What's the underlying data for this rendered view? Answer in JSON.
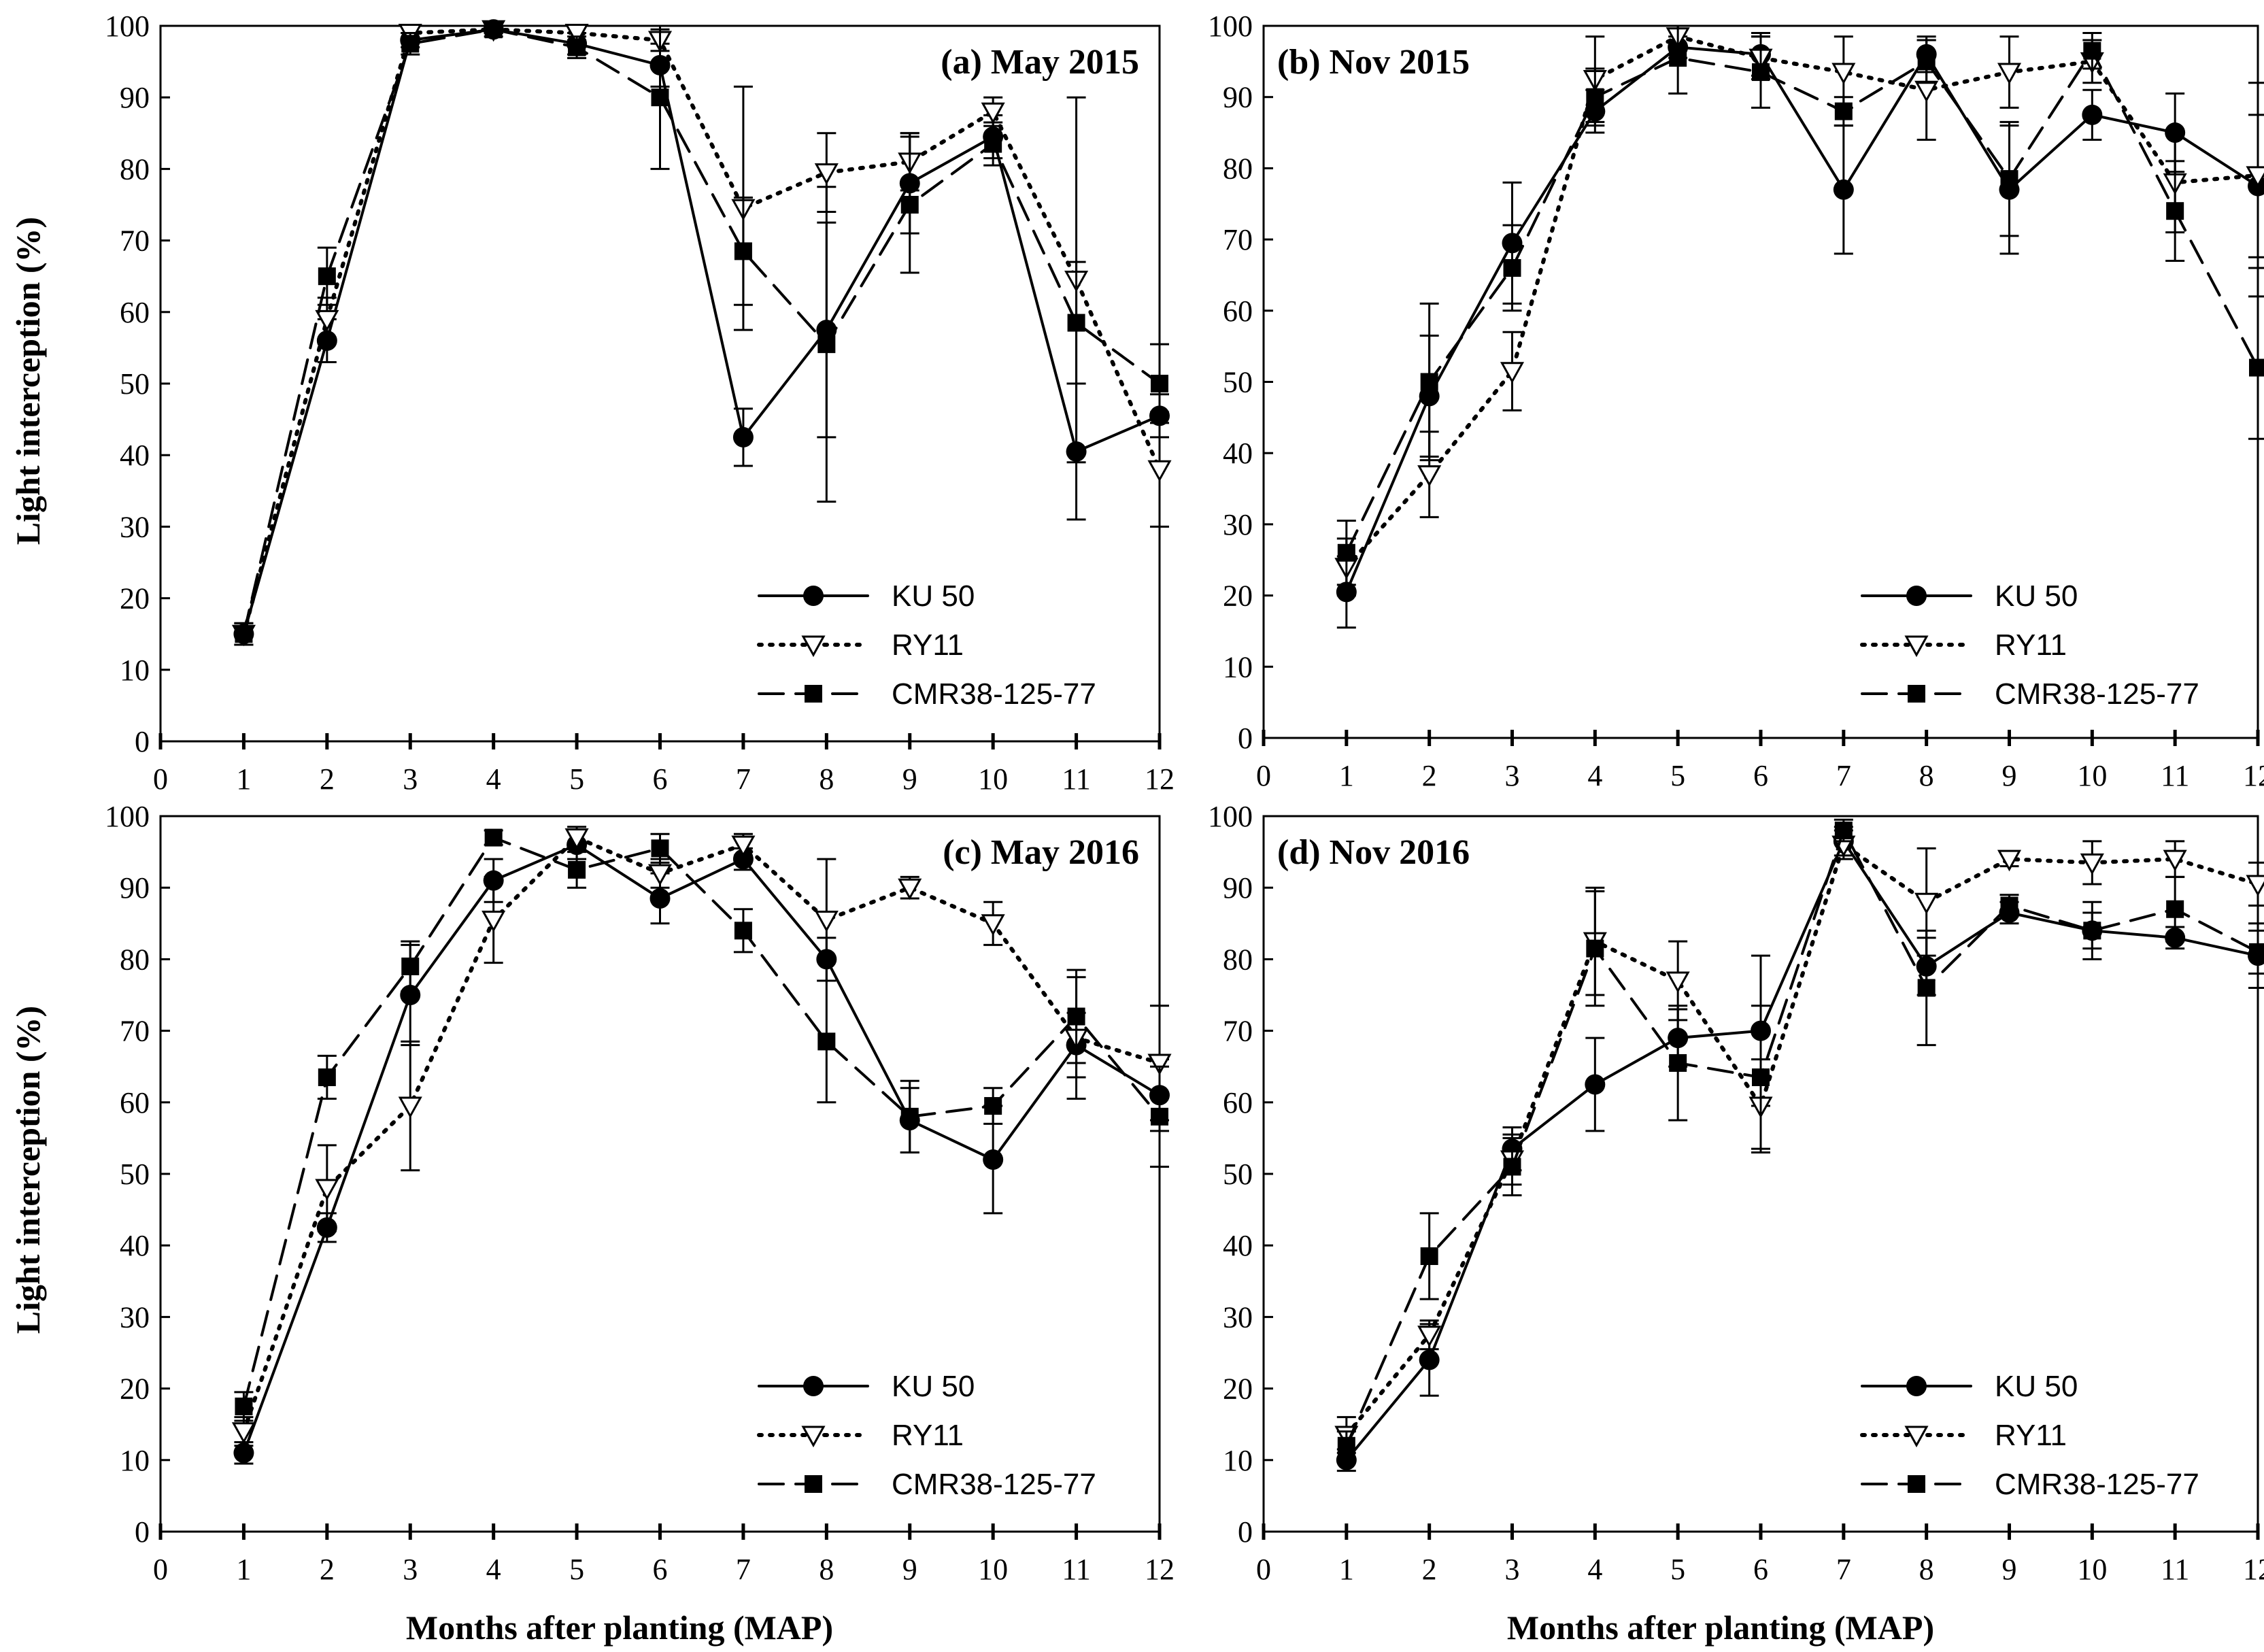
{
  "figure": {
    "ylabel": "Light interception (%)",
    "xlabel": "Months after planting (MAP)",
    "x_ticks": [
      "0",
      "1",
      "2",
      "3",
      "4",
      "5",
      "6",
      "7",
      "8",
      "9",
      "10",
      "11",
      "12"
    ],
    "y_ticks": [
      "0",
      "10",
      "20",
      "30",
      "40",
      "50",
      "60",
      "70",
      "80",
      "90",
      "100"
    ]
  },
  "chart_data": [
    {
      "type": "line",
      "title": "(a) May 2015",
      "xlabel": "",
      "ylabel": "Light interception (%)",
      "xlim": [
        0,
        12
      ],
      "ylim": [
        0,
        100
      ],
      "x": [
        1,
        2,
        3,
        4,
        5,
        6,
        7,
        8,
        9,
        10,
        11,
        12
      ],
      "legend": [
        "KU 50",
        "RY11",
        "CMR38-125-77"
      ],
      "series": [
        {
          "name": "KU 50",
          "style": "solid",
          "marker": "circle",
          "values": [
            15,
            56,
            98,
            99.5,
            97.5,
            94.5,
            42.5,
            57.5,
            78,
            84.5,
            40.5,
            45.5
          ],
          "errors": [
            1.5,
            3,
            1,
            1,
            1.5,
            3,
            4,
            15,
            7,
            3,
            9.5,
            3
          ]
        },
        {
          "name": "RY11",
          "style": "dotted",
          "marker": "triangle-down-open",
          "values": [
            15,
            59,
            99,
            99.5,
            99,
            98,
            74.5,
            79.5,
            81,
            88,
            64.5,
            38
          ],
          "errors": [
            1.5,
            3,
            1,
            0.5,
            1,
            1.5,
            17,
            5.5,
            4,
            2,
            25.5,
            8
          ]
        },
        {
          "name": "CMR38-125-77",
          "style": "dashed",
          "marker": "square",
          "values": [
            15,
            65,
            97.5,
            99.5,
            97,
            90,
            68.5,
            55.5,
            75,
            83.5,
            58.5,
            50
          ],
          "errors": [
            1.5,
            4,
            1.5,
            0.5,
            1.5,
            10,
            7.5,
            22,
            9.5,
            3,
            8.5,
            5.5
          ]
        }
      ]
    },
    {
      "type": "line",
      "title": "(b) Nov 2015",
      "xlabel": "",
      "ylabel": "",
      "xlim": [
        0,
        12
      ],
      "ylim": [
        0,
        100
      ],
      "x": [
        1,
        2,
        3,
        4,
        5,
        6,
        7,
        8,
        9,
        10,
        11,
        12
      ],
      "legend": [
        "KU 50",
        "RY11",
        "CMR38-125-77"
      ],
      "series": [
        {
          "name": "KU 50",
          "style": "solid",
          "marker": "circle",
          "values": [
            20.5,
            48,
            69.5,
            88,
            97,
            96,
            77,
            96,
            77,
            87.5,
            85,
            77.5
          ],
          "errors": [
            5,
            8.5,
            8.5,
            3,
            1.5,
            3,
            9,
            2.5,
            9,
            3.5,
            5.5,
            10
          ]
        },
        {
          "name": "RY11",
          "style": "dotted",
          "marker": "triangle-down-open",
          "values": [
            24,
            37,
            51.5,
            92.5,
            98.5,
            95.5,
            93.5,
            91,
            93.5,
            95,
            78,
            79
          ],
          "errors": [
            4,
            6,
            5.5,
            6,
            1.5,
            3,
            5,
            7,
            5,
            3,
            7,
            13
          ]
        },
        {
          "name": "CMR38-125-77",
          "style": "dashed",
          "marker": "square",
          "values": [
            26,
            50,
            66,
            90,
            95.5,
            93.5,
            88,
            95,
            78.5,
            96.5,
            74,
            52
          ],
          "errors": [
            4.5,
            11,
            6,
            4,
            5,
            5,
            2,
            3,
            8,
            2.5,
            7,
            10
          ]
        }
      ]
    },
    {
      "type": "line",
      "title": "(c) May 2016",
      "xlabel": "Months after planting (MAP)",
      "ylabel": "Light interception (%)",
      "xlim": [
        0,
        12
      ],
      "ylim": [
        0,
        100
      ],
      "x": [
        1,
        2,
        3,
        4,
        5,
        6,
        7,
        8,
        9,
        10,
        11,
        12
      ],
      "legend": [
        "KU 50",
        "RY11",
        "CMR38-125-77"
      ],
      "series": [
        {
          "name": "KU 50",
          "style": "solid",
          "marker": "circle",
          "values": [
            11,
            42.5,
            75,
            91,
            96,
            88.5,
            94,
            80,
            57.5,
            52,
            68,
            61
          ],
          "errors": [
            1.5,
            2,
            7,
            3,
            2,
            3.5,
            1.5,
            3,
            4.5,
            7.5,
            4.5,
            5
          ]
        },
        {
          "name": "RY11",
          "style": "dotted",
          "marker": "triangle-down-open",
          "values": [
            14,
            48,
            59.5,
            85.5,
            97,
            92,
            96,
            85.5,
            90,
            85,
            69,
            65.5
          ],
          "errors": [
            2,
            6,
            9,
            6,
            1.5,
            2,
            1.5,
            8.5,
            1.5,
            3,
            8.5,
            8
          ]
        },
        {
          "name": "CMR38-125-77",
          "style": "dashed",
          "marker": "square",
          "values": [
            17.5,
            63.5,
            79,
            97,
            92.5,
            95.5,
            84,
            68.5,
            58,
            59.5,
            72,
            58
          ],
          "errors": [
            2,
            3,
            3.5,
            1,
            2.5,
            2,
            3,
            8.5,
            5,
            2.5,
            6.5,
            7
          ]
        }
      ]
    },
    {
      "type": "line",
      "title": "(d) Nov 2016",
      "xlabel": "Months after planting (MAP)",
      "ylabel": "",
      "xlim": [
        0,
        12
      ],
      "ylim": [
        0,
        100
      ],
      "x": [
        1,
        2,
        3,
        4,
        5,
        6,
        7,
        8,
        9,
        10,
        11,
        12
      ],
      "legend": [
        "KU 50",
        "RY11",
        "CMR38-125-77"
      ],
      "series": [
        {
          "name": "KU 50",
          "style": "solid",
          "marker": "circle",
          "values": [
            10,
            24,
            53.5,
            62.5,
            69,
            70,
            96.5,
            79,
            86.5,
            84,
            83,
            80.5
          ],
          "errors": [
            1.5,
            5,
            3,
            6.5,
            4,
            10.5,
            2,
            4,
            1.5,
            2.5,
            1.5,
            4.5
          ]
        },
        {
          "name": "RY11",
          "style": "dotted",
          "marker": "triangle-down-open",
          "values": [
            13.5,
            27.5,
            52,
            82.5,
            77,
            59.5,
            96,
            88,
            94,
            93.5,
            94,
            90.5
          ],
          "errors": [
            2.5,
            2,
            3.5,
            7.5,
            5.5,
            6.5,
            2,
            7.5,
            1,
            3,
            2.5,
            3
          ]
        },
        {
          "name": "CMR38-125-77",
          "style": "dashed",
          "marker": "square",
          "values": [
            12,
            38.5,
            51,
            81.5,
            65.5,
            63.5,
            98,
            76,
            87.5,
            84,
            87,
            81
          ],
          "errors": [
            2,
            6,
            4,
            8,
            8,
            10,
            1.5,
            8,
            1.5,
            4,
            4.5,
            3
          ]
        }
      ]
    }
  ]
}
